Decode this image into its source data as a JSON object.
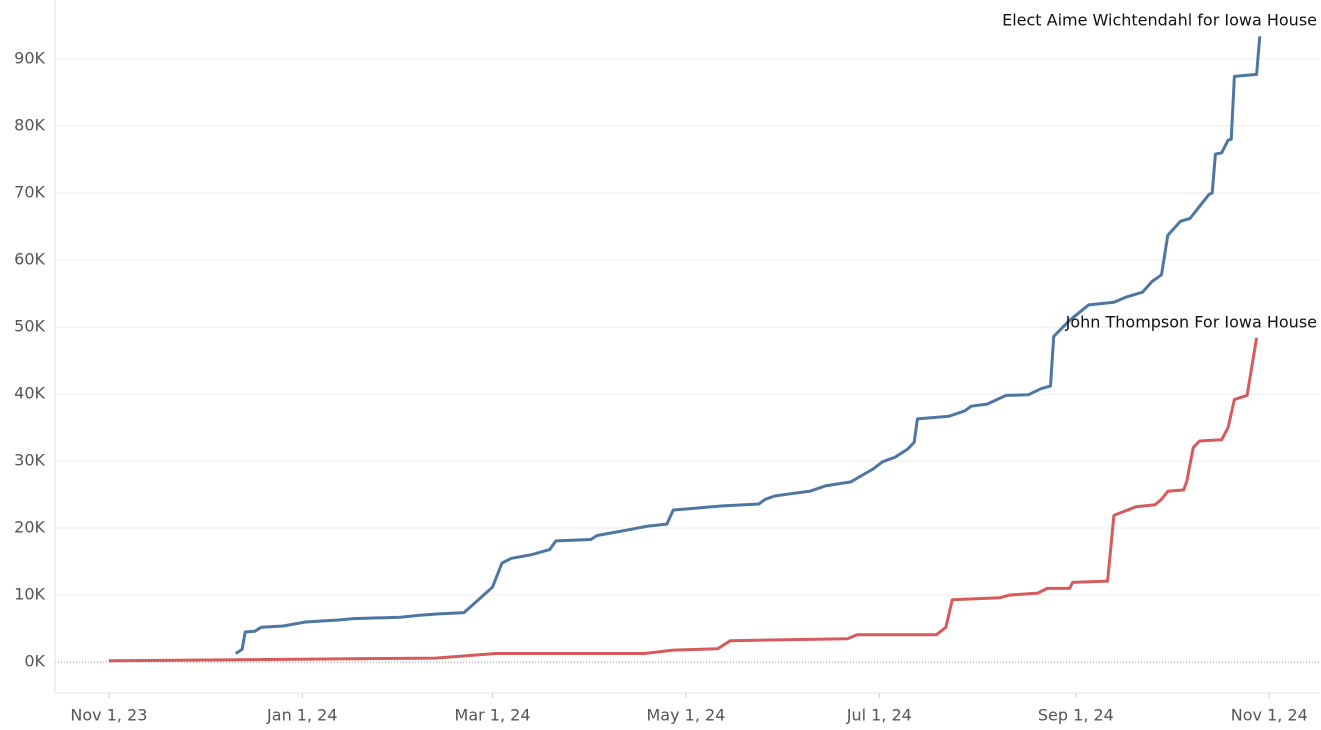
{
  "chart_data": {
    "type": "line",
    "xlim": [
      "2023-10-15",
      "2024-11-17"
    ],
    "xticks": [
      {
        "value": "2023-11-01",
        "label": "Nov 1, 23"
      },
      {
        "value": "2024-01-01",
        "label": "Jan 1, 24"
      },
      {
        "value": "2024-03-01",
        "label": "Mar 1, 24"
      },
      {
        "value": "2024-05-01",
        "label": "May 1, 24"
      },
      {
        "value": "2024-07-01",
        "label": "Jul 1, 24"
      },
      {
        "value": "2024-09-01",
        "label": "Sep 1, 24"
      },
      {
        "value": "2024-11-01",
        "label": "Nov 1, 24"
      }
    ],
    "ylim": [
      -4600,
      98800
    ],
    "yticks": [
      {
        "value": 0,
        "label": "0K"
      },
      {
        "value": 10000,
        "label": "10K"
      },
      {
        "value": 20000,
        "label": "20K"
      },
      {
        "value": 30000,
        "label": "30K"
      },
      {
        "value": 40000,
        "label": "40K"
      },
      {
        "value": 50000,
        "label": "50K"
      },
      {
        "value": 60000,
        "label": "60K"
      },
      {
        "value": 70000,
        "label": "70K"
      },
      {
        "value": 80000,
        "label": "80K"
      },
      {
        "value": 90000,
        "label": "90K"
      }
    ],
    "grid": true,
    "series": [
      {
        "name": "Elect Aime Wichtendahl for Iowa House",
        "color": "#4e76a2",
        "x": [
          "2023-12-11",
          "2023-12-13",
          "2023-12-14",
          "2023-12-17",
          "2023-12-19",
          "2023-12-26",
          "2024-01-02",
          "2024-01-13",
          "2024-01-17",
          "2024-02-01",
          "2024-02-07",
          "2024-02-13",
          "2024-02-21",
          "2024-02-26",
          "2024-03-01",
          "2024-03-04",
          "2024-03-07",
          "2024-03-13",
          "2024-03-19",
          "2024-03-21",
          "2024-04-01",
          "2024-04-03",
          "2024-04-10",
          "2024-04-19",
          "2024-04-25",
          "2024-04-27",
          "2024-05-02",
          "2024-05-12",
          "2024-05-24",
          "2024-05-26",
          "2024-05-29",
          "2024-06-04",
          "2024-06-09",
          "2024-06-14",
          "2024-06-22",
          "2024-06-26",
          "2024-06-29",
          "2024-07-02",
          "2024-07-06",
          "2024-07-10",
          "2024-07-12",
          "2024-07-13",
          "2024-07-23",
          "2024-07-28",
          "2024-07-30",
          "2024-08-04",
          "2024-08-10",
          "2024-08-17",
          "2024-08-21",
          "2024-08-24",
          "2024-08-25",
          "2024-08-30",
          "2024-09-05",
          "2024-09-13",
          "2024-09-17",
          "2024-09-22",
          "2024-09-25",
          "2024-09-28",
          "2024-09-30",
          "2024-10-04",
          "2024-10-07",
          "2024-10-10",
          "2024-10-13",
          "2024-10-14",
          "2024-10-15",
          "2024-10-17",
          "2024-10-19",
          "2024-10-20",
          "2024-10-21",
          "2024-10-28",
          "2024-10-29"
        ],
        "values": [
          1300,
          1900,
          4500,
          4600,
          5200,
          5400,
          6000,
          6300,
          6500,
          6700,
          7000,
          7200,
          7400,
          9500,
          11200,
          14800,
          15500,
          16000,
          16800,
          18100,
          18300,
          18900,
          19500,
          20300,
          20600,
          22700,
          22900,
          23300,
          23600,
          24300,
          24800,
          25200,
          25500,
          26300,
          26900,
          28000,
          28800,
          29900,
          30600,
          31800,
          32800,
          36300,
          36700,
          37500,
          38200,
          38500,
          39800,
          39900,
          40800,
          41200,
          48600,
          51000,
          53300,
          53700,
          54500,
          55200,
          56800,
          57800,
          63700,
          65800,
          66200,
          68000,
          69800,
          70000,
          75800,
          76000,
          77900,
          78000,
          87400,
          87700,
          93400
        ]
      },
      {
        "name": "John Thompson For Iowa House",
        "color": "#d75a5c",
        "x": [
          "2023-11-01",
          "2024-02-12",
          "2024-03-02",
          "2024-04-18",
          "2024-04-27",
          "2024-05-11",
          "2024-05-15",
          "2024-06-21",
          "2024-06-24",
          "2024-07-19",
          "2024-07-22",
          "2024-07-24",
          "2024-08-08",
          "2024-08-11",
          "2024-08-20",
          "2024-08-23",
          "2024-08-30",
          "2024-08-31",
          "2024-09-11",
          "2024-09-13",
          "2024-09-20",
          "2024-09-26",
          "2024-09-28",
          "2024-09-30",
          "2024-10-05",
          "2024-10-06",
          "2024-10-08",
          "2024-10-10",
          "2024-10-17",
          "2024-10-19",
          "2024-10-21",
          "2024-10-25",
          "2024-10-28"
        ],
        "values": [
          200,
          600,
          1300,
          1300,
          1800,
          2000,
          3200,
          3500,
          4100,
          4100,
          5200,
          9300,
          9600,
          10000,
          10300,
          11000,
          11000,
          11900,
          12100,
          21900,
          23200,
          23500,
          24300,
          25500,
          25700,
          27000,
          32000,
          33000,
          33200,
          35000,
          39200,
          39800,
          48400
        ]
      }
    ]
  }
}
